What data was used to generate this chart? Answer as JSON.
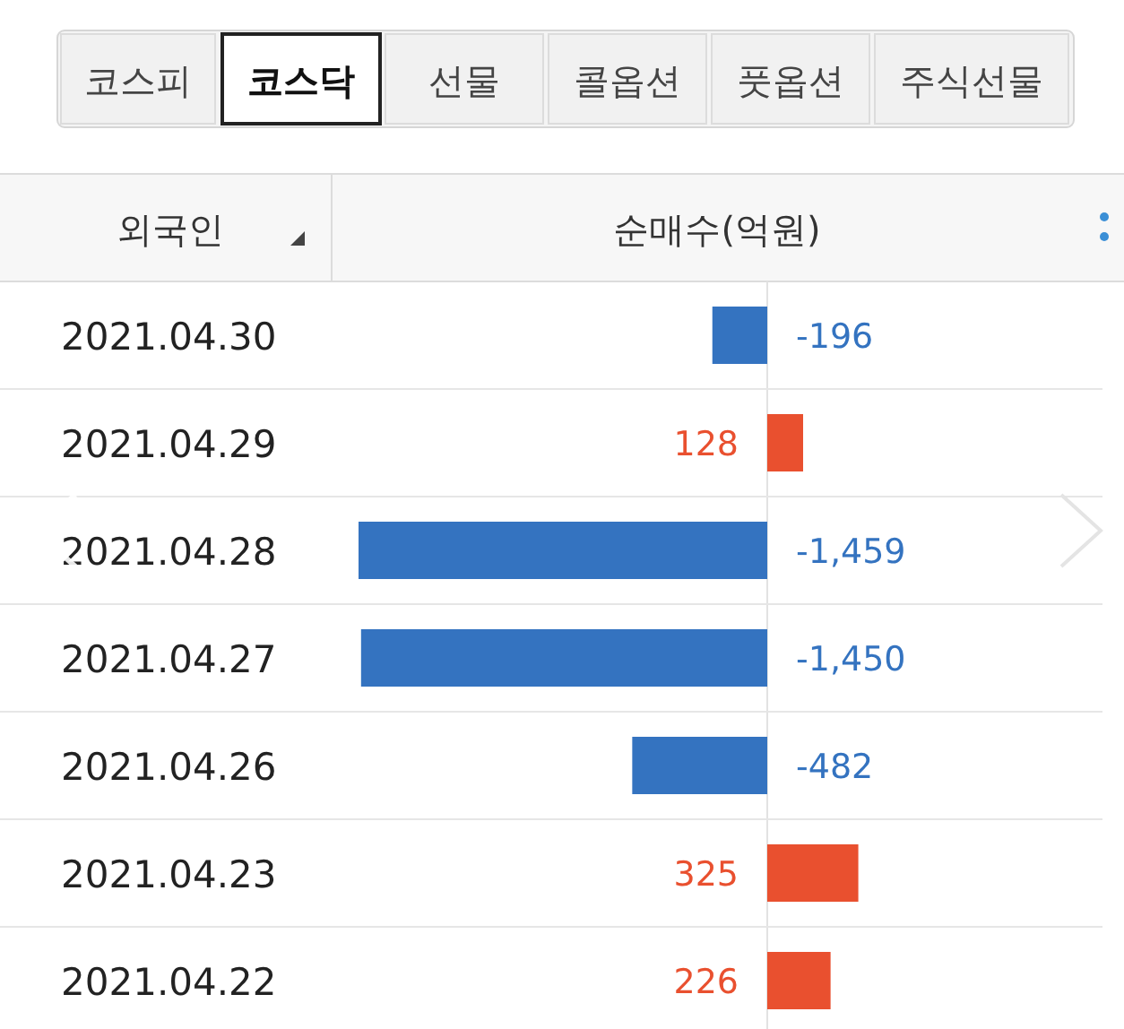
{
  "chart_data": {
    "type": "bar",
    "orientation": "horizontal",
    "ylabel": "외국인",
    "xlabel": "순매수(억원)",
    "annotations": [
      "코스피",
      "코스닥",
      "선물",
      "콜옵션",
      "풋옵션",
      "주식선물"
    ],
    "categories": [
      "2021.04.30",
      "2021.04.29",
      "2021.04.28",
      "2021.04.27",
      "2021.04.26",
      "2021.04.23",
      "2021.04.22"
    ],
    "values": [
      -196,
      128,
      -1459,
      -1450,
      -482,
      325,
      226
    ],
    "colors": [
      "#3473c0",
      "#e9502f",
      "#3473c0",
      "#3473c0",
      "#3473c0",
      "#e9502f",
      "#e9502f"
    ],
    "data_labels": true,
    "value_labels": [
      "-196",
      "128",
      "-1,459",
      "-1,450",
      "-482",
      "325",
      "226"
    ]
  }
}
